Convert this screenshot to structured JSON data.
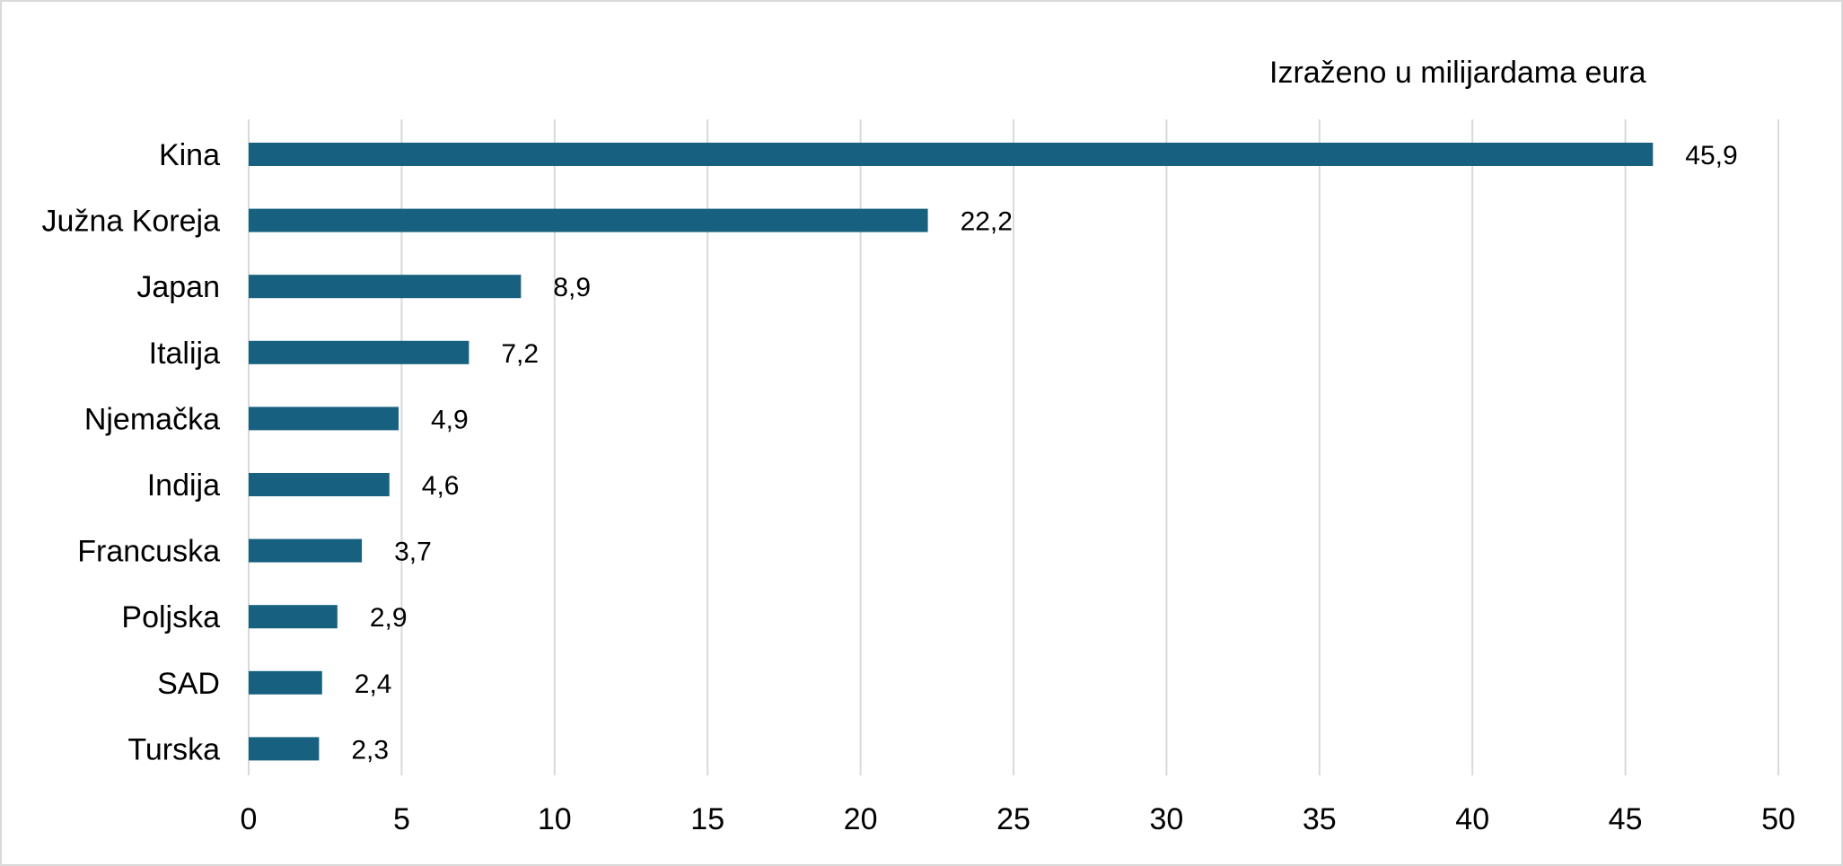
{
  "chart_data": {
    "type": "bar",
    "orientation": "horizontal",
    "unit_label": "Izraženo u milijardama eura",
    "categories": [
      "Kina",
      "Južna Koreja",
      "Japan",
      "Italija",
      "Njemačka",
      "Indija",
      "Francuska",
      "Poljska",
      "SAD",
      "Turska"
    ],
    "values": [
      45.9,
      22.2,
      8.9,
      7.2,
      4.9,
      4.6,
      3.7,
      2.9,
      2.4,
      2.3
    ],
    "value_labels": [
      "45,9",
      "22,2",
      "8,9",
      "7,2",
      "4,9",
      "4,6",
      "3,7",
      "2,9",
      "2,4",
      "2,3"
    ],
    "xlim": [
      0,
      50
    ],
    "x_ticks": [
      0,
      5,
      10,
      15,
      20,
      25,
      30,
      35,
      40,
      45,
      50
    ],
    "grid": "vertical",
    "legend": "none",
    "bar_color": "#17607f",
    "grid_color": "#d9d9d9"
  }
}
